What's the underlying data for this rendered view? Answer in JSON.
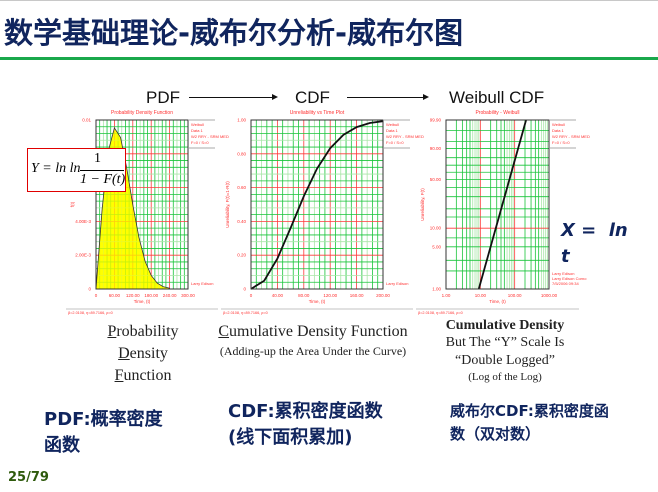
{
  "slide": {
    "title": "数学基础理论-威布尔分析-威布尔图",
    "page_number": "25/79",
    "accent_color": "#19a84b",
    "title_color": "#10255e"
  },
  "flow": {
    "step1": "PDF",
    "step2": "CDF",
    "step3": "Weibull CDF"
  },
  "formula": {
    "lhs": "Y = ln ln",
    "numerator": "1",
    "denominator": "1 − F(t)"
  },
  "x_formula": "X =  ln\nt",
  "captions": {
    "pdf": [
      "Probability",
      "Density",
      "Function"
    ],
    "cdf_title": "Cumulative Density Function",
    "cdf_sub": "(Adding-up the Area Under the Curve)",
    "weibull_title": "Cumulative Density",
    "weibull_lines": [
      "But The “Y” Scale Is",
      "“Double Logged”"
    ],
    "weibull_sub": "(Log of the Log)"
  },
  "cn_labels": {
    "pdf": [
      "PDF:概率密度",
      "函数"
    ],
    "cdf": [
      "CDF:累积密度函数",
      "(线下面积累加)"
    ],
    "weibull": [
      "威布尔CDF:累积密度函",
      "数（双对数）"
    ]
  },
  "chart_data": [
    {
      "type": "area",
      "title": "Probability Density Function",
      "xlabel": "Time, (t)",
      "ylabel": "f(t)",
      "xlim": [
        0,
        300
      ],
      "ylim": [
        0,
        0.01
      ],
      "x_ticks": [
        "0",
        "60.00",
        "120.00",
        "180.00",
        "240.00",
        "300.00"
      ],
      "y_ticks": [
        "0",
        "2.00E-3",
        "4.00E-3",
        "6.00E-3",
        "8.00E-3",
        "0.01"
      ],
      "grid": true,
      "fill_color": "#ffff00",
      "legend": [
        "Weibull",
        "Data 1",
        "W2 RRY - SRM MED",
        "F=0 / S=0"
      ],
      "author": "Larry Edison",
      "params": "β=2.0108, η=89.7166, ρ=0",
      "x": [
        0,
        20,
        40,
        60,
        80,
        100,
        120,
        140,
        160,
        180,
        200,
        220,
        240
      ],
      "y": [
        0,
        0.00473,
        0.00815,
        0.00953,
        0.00897,
        0.00717,
        0.00498,
        0.00305,
        0.00165,
        0.0008,
        0.00034,
        0.00013,
        5e-05
      ]
    },
    {
      "type": "line",
      "title": "Unreliability vs Time Plot",
      "xlabel": "Time, (t)",
      "ylabel": "Unreliability, F(t)=1-R(t)",
      "xlim": [
        0,
        200
      ],
      "ylim": [
        0,
        1
      ],
      "x_ticks": [
        "0",
        "40.00",
        "80.00",
        "120.00",
        "160.00",
        "200.00"
      ],
      "y_ticks": [
        "0",
        "0.20",
        "0.40",
        "0.60",
        "0.80",
        "1.00"
      ],
      "grid": true,
      "legend": [
        "Weibull",
        "Data 1",
        "W2 RRY - SRM MED",
        "F=0 / S=0"
      ],
      "author": "Larry Edison",
      "params": "β=2.0108, η=89.7166, ρ=0",
      "x": [
        0,
        20,
        40,
        60,
        80,
        100,
        120,
        140,
        160,
        180,
        200
      ],
      "y": [
        0,
        0.049,
        0.18,
        0.361,
        0.549,
        0.712,
        0.833,
        0.912,
        0.958,
        0.982,
        0.993
      ]
    },
    {
      "type": "line",
      "title": "Probability - Weibull",
      "xlabel": "Time, (t)",
      "ylabel": "Unreliability, F(t)",
      "xscale": "log",
      "yscale": "weibull",
      "xlim": [
        1,
        1000
      ],
      "ylim": [
        1,
        99.9
      ],
      "x_ticks": [
        "1.00",
        "10.00",
        "100.00",
        "1000.00"
      ],
      "y_ticks": [
        "1.00",
        "5.00",
        "10.00",
        "50.00",
        "90.00",
        "99.90"
      ],
      "grid": true,
      "legend": [
        "Weibull",
        "Data 1",
        "W2 RRY - SRM MED",
        "F=0 / S=0"
      ],
      "author": "Larry Edison\nLarry Edison Corno\n7/5/2006 09:34",
      "params": "β=2.0108, η=89.7166, ρ=0",
      "x": [
        9,
        215
      ],
      "y": [
        1,
        99.9
      ]
    }
  ]
}
